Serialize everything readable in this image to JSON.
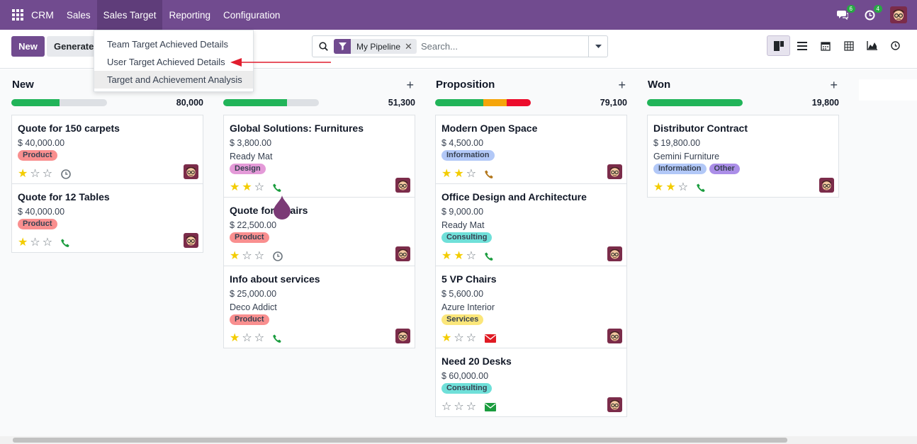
{
  "navbar": {
    "brand": "CRM",
    "menu": [
      "Sales",
      "Sales Target",
      "Reporting",
      "Configuration"
    ],
    "messages_count": "6",
    "activities_count": "4"
  },
  "control": {
    "new_label": "New",
    "generate_label": "Generate",
    "facet_label": "My Pipeline",
    "search_placeholder": "Search...",
    "views": [
      "kanban",
      "list",
      "calendar",
      "pivot",
      "graph",
      "activity"
    ]
  },
  "dropdown": {
    "items": [
      "Team Target Achieved Details",
      "User Target Achieved Details",
      "Target and Achievement Analysis"
    ]
  },
  "columns": [
    {
      "title": "New",
      "total": "80,000",
      "cards": [
        {
          "title": "Quote for 150 carpets",
          "amount": "$ 40,000.00",
          "customer": "",
          "tags": [
            "Product"
          ],
          "stars": 1,
          "activity": "clock"
        },
        {
          "title": "Quote for 12 Tables",
          "amount": "$ 40,000.00",
          "customer": "",
          "tags": [
            "Product"
          ],
          "stars": 1,
          "activity": "phone"
        }
      ]
    },
    {
      "title": "ied",
      "total": "51,300",
      "cards": [
        {
          "title": "Global Solutions: Furnitures",
          "amount": "$ 3,800.00",
          "customer": "Ready Mat",
          "tags": [
            "Design"
          ],
          "stars": 2,
          "activity": "phone"
        },
        {
          "title": "Quote for    Chairs",
          "amount": "$ 22,500.00",
          "customer": "",
          "tags": [
            "Product"
          ],
          "stars": 1,
          "activity": "clock"
        },
        {
          "title": "Info about services",
          "amount": "$ 25,000.00",
          "customer": "Deco Addict",
          "tags": [
            "Product"
          ],
          "stars": 1,
          "activity": "phone"
        }
      ]
    },
    {
      "title": "Proposition",
      "total": "79,100",
      "cards": [
        {
          "title": "Modern Open Space",
          "amount": "$ 4,500.00",
          "customer": "",
          "tags": [
            "Information"
          ],
          "stars": 2,
          "activity": "phone-warn"
        },
        {
          "title": "Office Design and Architecture",
          "amount": "$ 9,000.00",
          "customer": "Ready Mat",
          "tags": [
            "Consulting"
          ],
          "stars": 2,
          "activity": "phone"
        },
        {
          "title": "5 VP Chairs",
          "amount": "$ 5,600.00",
          "customer": "Azure Interior",
          "tags": [
            "Services"
          ],
          "stars": 1,
          "activity": "mail-red"
        },
        {
          "title": "Need 20 Desks",
          "amount": "$ 60,000.00",
          "customer": "",
          "tags": [
            "Consulting"
          ],
          "stars": 0,
          "activity": "mail-green"
        }
      ]
    },
    {
      "title": "Won",
      "total": "19,800",
      "cards": [
        {
          "title": "Distributor Contract",
          "amount": "$ 19,800.00",
          "customer": "Gemini Furniture",
          "tags": [
            "Information",
            "Other"
          ],
          "stars": 2,
          "activity": "phone"
        }
      ]
    }
  ],
  "progress": [
    {
      "green": 0.5,
      "orange": 0,
      "red": 0
    },
    {
      "green": 0.67,
      "orange": 0,
      "red": 0
    },
    {
      "green": 0.5,
      "orange": 0.25,
      "red": 0.25
    },
    {
      "green": 1.0,
      "orange": 0,
      "red": 0
    }
  ],
  "tag_colors": {
    "Product": "#f98f8f",
    "Design": "#e49ad8",
    "Information": "#b2c8f7",
    "Consulting": "#6fe0d9",
    "Services": "#fbe67a",
    "Other": "#ab8ee8"
  },
  "colors": {
    "brand": "#714b8f",
    "progress_green": "#21b459",
    "progress_orange": "#f5a50a",
    "progress_red": "#ec0c2c",
    "phone_green": "#1a9c3e",
    "phone_warn": "#b2761b",
    "mail_red": "#e01b24"
  }
}
